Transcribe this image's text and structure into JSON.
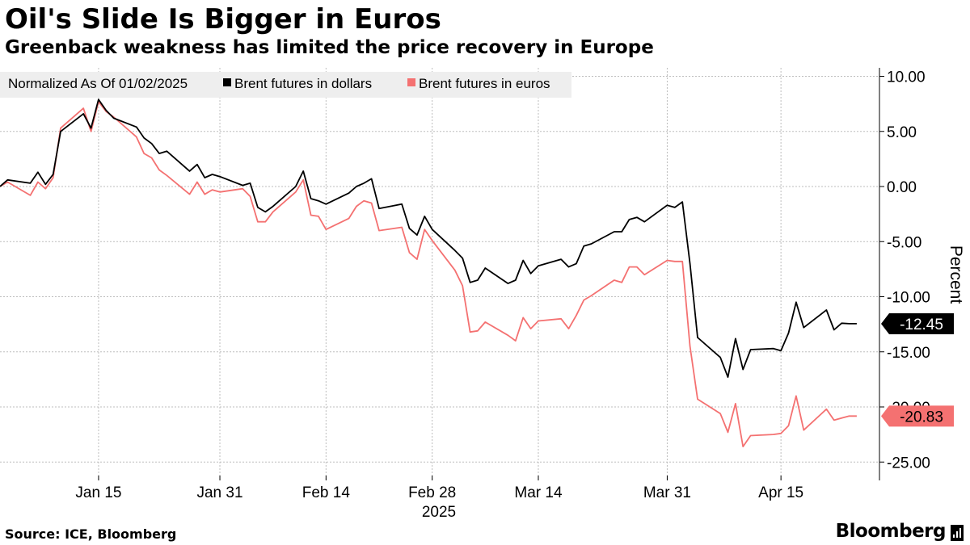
{
  "title": "Oil's Slide Is Bigger in Euros",
  "subtitle": "Greenback weakness has limited the price recovery in Europe",
  "source": "Source: ICE, Bloomberg",
  "brand": "Bloomberg",
  "chart_data": {
    "type": "line",
    "title": "Oil's Slide Is Bigger in Euros",
    "subtitle": "Greenback weakness has limited the price recovery in Europe",
    "xlabel": "2025",
    "ylabel": "Percent",
    "ylim": [
      -26.5,
      11
    ],
    "y_ticks": [
      10,
      5,
      0,
      -5,
      -10,
      -15,
      -20,
      -25
    ],
    "y_tick_labels": [
      "10.00",
      "5.00",
      "0.00",
      "-5.00",
      "-10.00",
      "-15.00",
      "-20.00",
      "-25.00"
    ],
    "x_range": [
      "2025-01-02",
      "2025-04-25"
    ],
    "x_ticks": [
      "2025-01-15",
      "2025-01-31",
      "2025-02-14",
      "2025-02-28",
      "2025-03-14",
      "2025-03-31",
      "2025-04-15"
    ],
    "x_tick_labels": [
      "Jan 15",
      "Jan 31",
      "Feb 14",
      "Feb 28",
      "Mar 14",
      "Mar 31",
      "Apr 15"
    ],
    "year_label": "2025",
    "legend": {
      "note": "Normalized As Of 01/02/2025",
      "items": [
        "Brent futures in dollars",
        "Brent futures in euros"
      ]
    },
    "grid": true,
    "x": [
      "2025-01-02",
      "2025-01-03",
      "2025-01-06",
      "2025-01-07",
      "2025-01-08",
      "2025-01-09",
      "2025-01-10",
      "2025-01-13",
      "2025-01-14",
      "2025-01-15",
      "2025-01-16",
      "2025-01-17",
      "2025-01-20",
      "2025-01-21",
      "2025-01-22",
      "2025-01-23",
      "2025-01-24",
      "2025-01-27",
      "2025-01-28",
      "2025-01-29",
      "2025-01-30",
      "2025-01-31",
      "2025-02-03",
      "2025-02-04",
      "2025-02-05",
      "2025-02-06",
      "2025-02-07",
      "2025-02-10",
      "2025-02-11",
      "2025-02-12",
      "2025-02-13",
      "2025-02-14",
      "2025-02-17",
      "2025-02-18",
      "2025-02-19",
      "2025-02-20",
      "2025-02-21",
      "2025-02-24",
      "2025-02-25",
      "2025-02-26",
      "2025-02-27",
      "2025-02-28",
      "2025-03-03",
      "2025-03-04",
      "2025-03-05",
      "2025-03-06",
      "2025-03-07",
      "2025-03-10",
      "2025-03-11",
      "2025-03-12",
      "2025-03-13",
      "2025-03-14",
      "2025-03-17",
      "2025-03-18",
      "2025-03-19",
      "2025-03-20",
      "2025-03-21",
      "2025-03-24",
      "2025-03-25",
      "2025-03-26",
      "2025-03-27",
      "2025-03-28",
      "2025-03-31",
      "2025-04-01",
      "2025-04-02",
      "2025-04-03",
      "2025-04-04",
      "2025-04-07",
      "2025-04-08",
      "2025-04-09",
      "2025-04-10",
      "2025-04-11",
      "2025-04-14",
      "2025-04-15",
      "2025-04-16",
      "2025-04-17",
      "2025-04-18",
      "2025-04-21",
      "2025-04-22",
      "2025-04-23",
      "2025-04-24",
      "2025-04-25"
    ],
    "series": [
      {
        "name": "Brent futures in dollars",
        "color": "#000000",
        "last_value": -12.45,
        "last_label": "-12.45",
        "values": [
          0.0,
          0.6,
          0.3,
          1.3,
          0.2,
          1.1,
          5.0,
          6.6,
          5.3,
          7.9,
          6.9,
          6.2,
          5.4,
          4.4,
          3.9,
          3.0,
          3.2,
          1.4,
          2.0,
          0.8,
          1.1,
          0.9,
          0.1,
          0.3,
          -1.9,
          -2.3,
          -1.8,
          0.0,
          1.4,
          -1.1,
          -1.3,
          -1.6,
          -0.6,
          0.0,
          0.3,
          0.7,
          -2.0,
          -1.6,
          -3.8,
          -4.4,
          -2.7,
          -3.9,
          -5.8,
          -6.5,
          -8.7,
          -8.5,
          -7.4,
          -8.8,
          -8.5,
          -6.7,
          -7.9,
          -7.2,
          -6.6,
          -7.3,
          -7.0,
          -5.4,
          -5.2,
          -4.1,
          -4.1,
          -3.0,
          -2.8,
          -3.2,
          -1.7,
          -1.9,
          -1.4,
          -7.0,
          -13.7,
          -15.5,
          -17.3,
          -13.8,
          -16.6,
          -14.8,
          -14.7,
          -14.9,
          -13.3,
          -10.5,
          -12.8,
          -11.2,
          -13.0,
          -12.4,
          -12.45,
          -12.45
        ]
      },
      {
        "name": "Brent futures in euros",
        "color": "#f47171",
        "last_value": -20.83,
        "last_label": "-20.83",
        "values": [
          0.0,
          0.4,
          -0.8,
          0.4,
          -0.2,
          0.8,
          5.3,
          7.1,
          5.0,
          7.7,
          6.8,
          6.3,
          4.5,
          3.0,
          2.6,
          1.5,
          1.0,
          -0.7,
          0.4,
          -0.7,
          -0.3,
          -0.5,
          -0.2,
          -0.9,
          -3.2,
          -3.2,
          -2.3,
          -0.5,
          0.6,
          -2.6,
          -2.7,
          -3.9,
          -2.9,
          -1.8,
          -1.3,
          -1.5,
          -4.0,
          -3.7,
          -6.0,
          -6.6,
          -3.9,
          -4.9,
          -7.6,
          -9.0,
          -13.2,
          -13.1,
          -12.3,
          -13.5,
          -14.0,
          -11.9,
          -12.9,
          -12.2,
          -12.0,
          -12.9,
          -11.7,
          -10.3,
          -9.9,
          -8.5,
          -8.7,
          -7.3,
          -7.3,
          -8.0,
          -6.7,
          -6.8,
          -6.8,
          -14.5,
          -19.3,
          -20.6,
          -22.3,
          -19.7,
          -23.6,
          -22.6,
          -22.5,
          -22.4,
          -21.7,
          -19.0,
          -22.1,
          -20.2,
          -21.2,
          -21.0,
          -20.83,
          -20.83
        ]
      }
    ]
  }
}
